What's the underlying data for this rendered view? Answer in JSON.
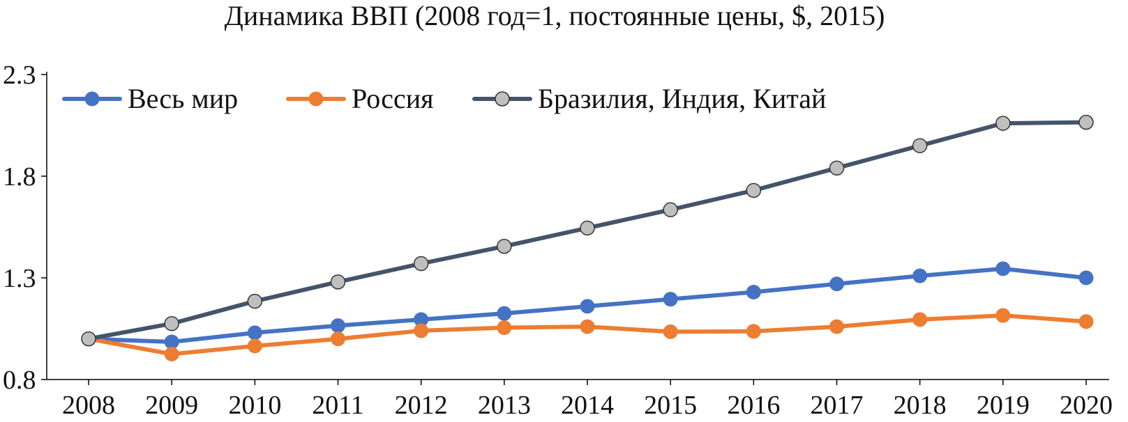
{
  "chart_data": {
    "type": "line",
    "title": "Динамика ВВП (2008 год=1, постоянные цены, $, 2015)",
    "xlabel": "",
    "ylabel": "",
    "categories": [
      "2008",
      "2009",
      "2010",
      "2011",
      "2012",
      "2013",
      "2014",
      "2015",
      "2016",
      "2017",
      "2018",
      "2019",
      "2020"
    ],
    "yticks": [
      "0.8",
      "1.3",
      "1.8",
      "2.3"
    ],
    "ylim": [
      0.8,
      2.3
    ],
    "grid": false,
    "legend_position": "top-left",
    "series": [
      {
        "name": "Весь мир",
        "color": "#4472C4",
        "marker_fill": "#4472C4",
        "values": [
          1.0,
          0.985,
          1.03,
          1.065,
          1.095,
          1.125,
          1.16,
          1.195,
          1.23,
          1.27,
          1.31,
          1.345,
          1.3
        ]
      },
      {
        "name": "Россия",
        "color": "#ED7D31",
        "marker_fill": "#ED7D31",
        "values": [
          1.0,
          0.925,
          0.965,
          1.0,
          1.04,
          1.055,
          1.06,
          1.035,
          1.037,
          1.06,
          1.095,
          1.115,
          1.085
        ]
      },
      {
        "name": "Бразилия, Индия, Китай",
        "color": "#44546A",
        "marker_fill": "#BFBFBF",
        "values": [
          1.0,
          1.075,
          1.185,
          1.28,
          1.37,
          1.455,
          1.545,
          1.635,
          1.73,
          1.84,
          1.95,
          2.06,
          2.065
        ]
      }
    ]
  }
}
